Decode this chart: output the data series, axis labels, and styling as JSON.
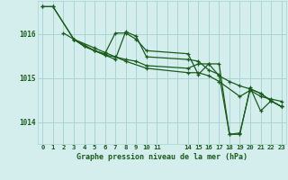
{
  "background_color": "#d4eeee",
  "grid_color": "#aad4d4",
  "line_color": "#1a5c1a",
  "xlabel": "Graphe pression niveau de la mer (hPa)",
  "ylabel_ticks": [
    1014,
    1015,
    1016
  ],
  "ylim": [
    1013.5,
    1016.75
  ],
  "xlim": [
    -0.5,
    23.5
  ],
  "xtick_positions": [
    0,
    1,
    2,
    3,
    4,
    5,
    6,
    7,
    8,
    9,
    10,
    11,
    14,
    15,
    16,
    17,
    18,
    19,
    20,
    21,
    22,
    23
  ],
  "xtick_labels": [
    "0",
    "1",
    "2",
    "3",
    "4",
    "5",
    "6",
    "7",
    "8",
    "9",
    "10",
    "11",
    "14",
    "15",
    "16",
    "17",
    "18",
    "19",
    "20",
    "21",
    "22",
    "23"
  ],
  "series": [
    {
      "x": [
        0,
        1,
        3,
        5,
        6,
        7,
        8,
        10,
        14,
        15,
        16,
        17,
        19,
        20,
        21,
        22,
        23
      ],
      "y": [
        1016.62,
        1016.62,
        1015.88,
        1015.68,
        1015.58,
        1015.48,
        1015.38,
        1015.22,
        1015.12,
        1015.12,
        1015.05,
        1014.92,
        1014.58,
        1014.72,
        1014.58,
        1014.52,
        1014.47
      ]
    },
    {
      "x": [
        0,
        1,
        3,
        5,
        6,
        7,
        8,
        9,
        10,
        14,
        15,
        16,
        17,
        18,
        19,
        20,
        21,
        22,
        23
      ],
      "y": [
        1016.62,
        1016.62,
        1015.88,
        1015.62,
        1015.52,
        1015.42,
        1016.05,
        1015.95,
        1015.48,
        1015.42,
        1015.38,
        1015.18,
        1015.08,
        1013.72,
        1013.72,
        1014.78,
        1014.25,
        1014.48,
        1014.35
      ]
    },
    {
      "x": [
        2,
        3,
        4,
        5,
        6,
        7,
        8,
        9,
        10,
        14,
        15,
        16,
        17,
        18,
        19,
        20,
        21,
        22,
        23
      ],
      "y": [
        1016.02,
        1015.88,
        1015.72,
        1015.62,
        1015.55,
        1016.02,
        1016.02,
        1015.88,
        1015.62,
        1015.55,
        1015.08,
        1015.32,
        1015.05,
        1014.92,
        1014.82,
        1014.75,
        1014.65,
        1014.48,
        1014.35
      ]
    },
    {
      "x": [
        3,
        4,
        5,
        6,
        7,
        8,
        9,
        10,
        14,
        15,
        16,
        17,
        18,
        19,
        20,
        21,
        22,
        23
      ],
      "y": [
        1015.88,
        1015.72,
        1015.62,
        1015.52,
        1015.48,
        1015.42,
        1015.38,
        1015.28,
        1015.22,
        1015.32,
        1015.32,
        1015.32,
        1013.72,
        1013.75,
        1014.75,
        1014.65,
        1014.48,
        1014.35
      ]
    }
  ]
}
